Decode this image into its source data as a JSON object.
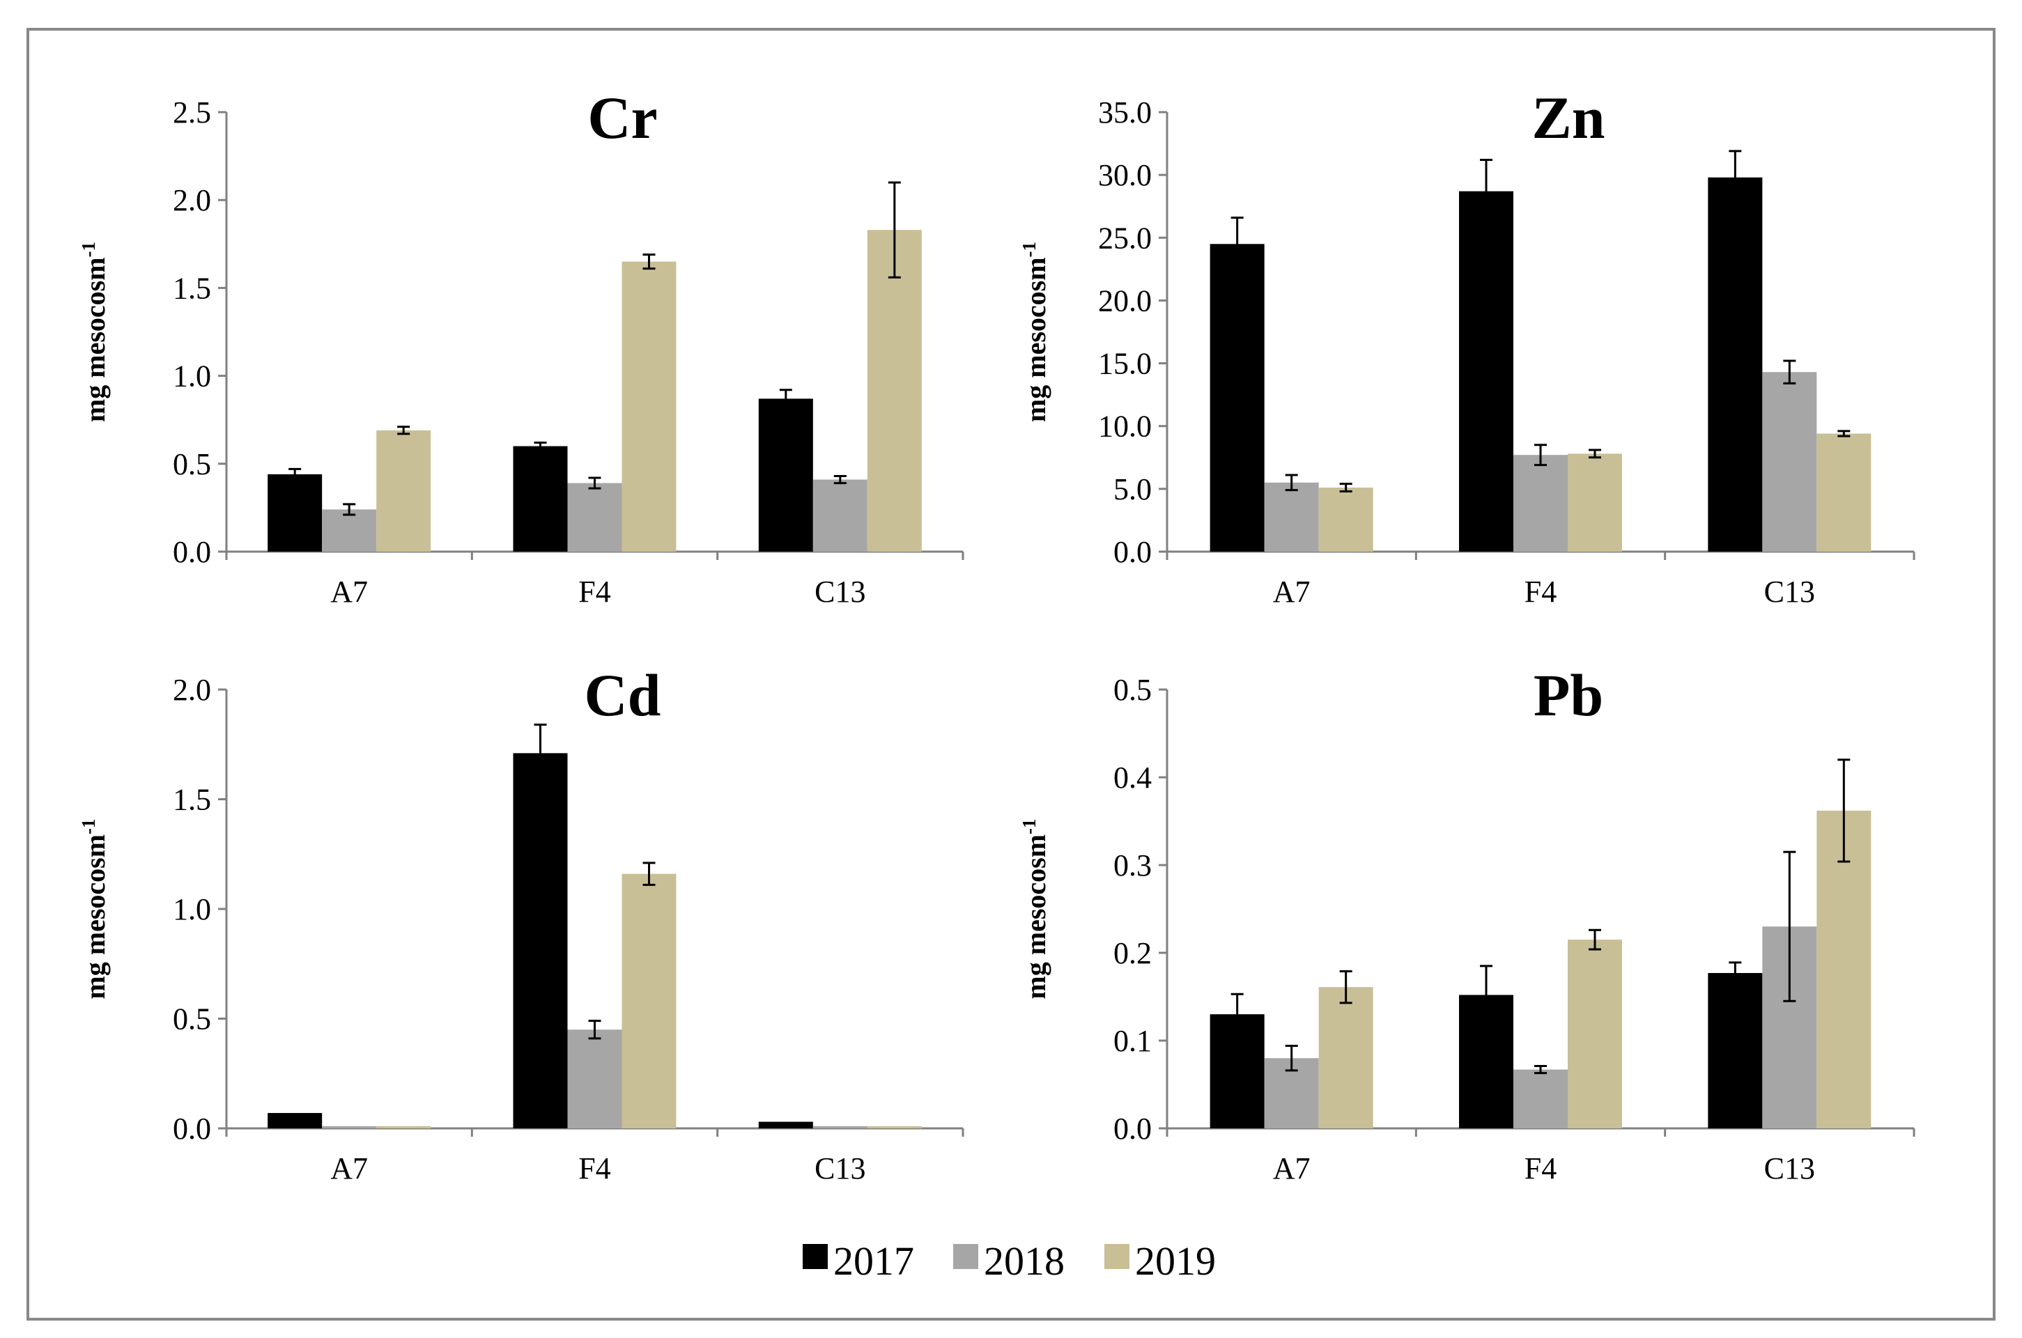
{
  "legend": [
    {
      "label": "2017",
      "color": "#000000"
    },
    {
      "label": "2018",
      "color": "#a6a6a6"
    },
    {
      "label": "2019",
      "color": "#c9bf96"
    }
  ],
  "chart_data": [
    {
      "type": "bar",
      "title": "Cr",
      "ylabel": "mg mesocosm",
      "ylabel_sup": "-1",
      "categories": [
        "A7",
        "F4",
        "C13"
      ],
      "ylim": [
        0,
        2.5
      ],
      "yticks": [
        "0.0",
        "0.5",
        "1.0",
        "1.5",
        "2.0",
        "2.5"
      ],
      "series": [
        {
          "name": "2017",
          "values": [
            0.44,
            0.6,
            0.87
          ],
          "errors": [
            0.03,
            0.02,
            0.05
          ]
        },
        {
          "name": "2018",
          "values": [
            0.24,
            0.39,
            0.41
          ],
          "errors": [
            0.03,
            0.03,
            0.02
          ]
        },
        {
          "name": "2019",
          "values": [
            0.69,
            1.65,
            1.83
          ],
          "errors": [
            0.02,
            0.04,
            0.27
          ]
        }
      ]
    },
    {
      "type": "bar",
      "title": "Zn",
      "ylabel": "mg mesocosm",
      "ylabel_sup": "-1",
      "categories": [
        "A7",
        "F4",
        "C13"
      ],
      "ylim": [
        0,
        35
      ],
      "yticks": [
        "0.0",
        "5.0",
        "10.0",
        "15.0",
        "20.0",
        "25.0",
        "30.0",
        "35.0"
      ],
      "series": [
        {
          "name": "2017",
          "values": [
            24.5,
            28.7,
            29.8
          ],
          "errors": [
            2.1,
            2.5,
            2.1
          ]
        },
        {
          "name": "2018",
          "values": [
            5.5,
            7.7,
            14.3
          ],
          "errors": [
            0.6,
            0.8,
            0.9
          ]
        },
        {
          "name": "2019",
          "values": [
            5.1,
            7.8,
            9.4
          ],
          "errors": [
            0.3,
            0.3,
            0.2
          ]
        }
      ]
    },
    {
      "type": "bar",
      "title": "Cd",
      "ylabel": "mg mesocosm",
      "ylabel_sup": "-1",
      "categories": [
        "A7",
        "F4",
        "C13"
      ],
      "ylim": [
        0,
        2.0
      ],
      "yticks": [
        "0.0",
        "0.5",
        "1.0",
        "1.5",
        "2.0"
      ],
      "series": [
        {
          "name": "2017",
          "values": [
            0.07,
            1.71,
            0.03
          ],
          "errors": [
            0.0,
            0.13,
            0.0
          ]
        },
        {
          "name": "2018",
          "values": [
            0.01,
            0.45,
            0.01
          ],
          "errors": [
            0.0,
            0.04,
            0.0
          ]
        },
        {
          "name": "2019",
          "values": [
            0.01,
            1.16,
            0.01
          ],
          "errors": [
            0.0,
            0.05,
            0.0
          ]
        }
      ]
    },
    {
      "type": "bar",
      "title": "Pb",
      "ylabel": "mg mesocosm",
      "ylabel_sup": "-1",
      "categories": [
        "A7",
        "F4",
        "C13"
      ],
      "ylim": [
        0,
        0.5
      ],
      "yticks": [
        "0.0",
        "0.1",
        "0.2",
        "0.3",
        "0.4",
        "0.5"
      ],
      "series": [
        {
          "name": "2017",
          "values": [
            0.13,
            0.152,
            0.177
          ],
          "errors": [
            0.023,
            0.033,
            0.012
          ]
        },
        {
          "name": "2018",
          "values": [
            0.08,
            0.067,
            0.23
          ],
          "errors": [
            0.014,
            0.004,
            0.085
          ]
        },
        {
          "name": "2019",
          "values": [
            0.161,
            0.215,
            0.362
          ],
          "errors": [
            0.018,
            0.011,
            0.058
          ]
        }
      ]
    }
  ]
}
